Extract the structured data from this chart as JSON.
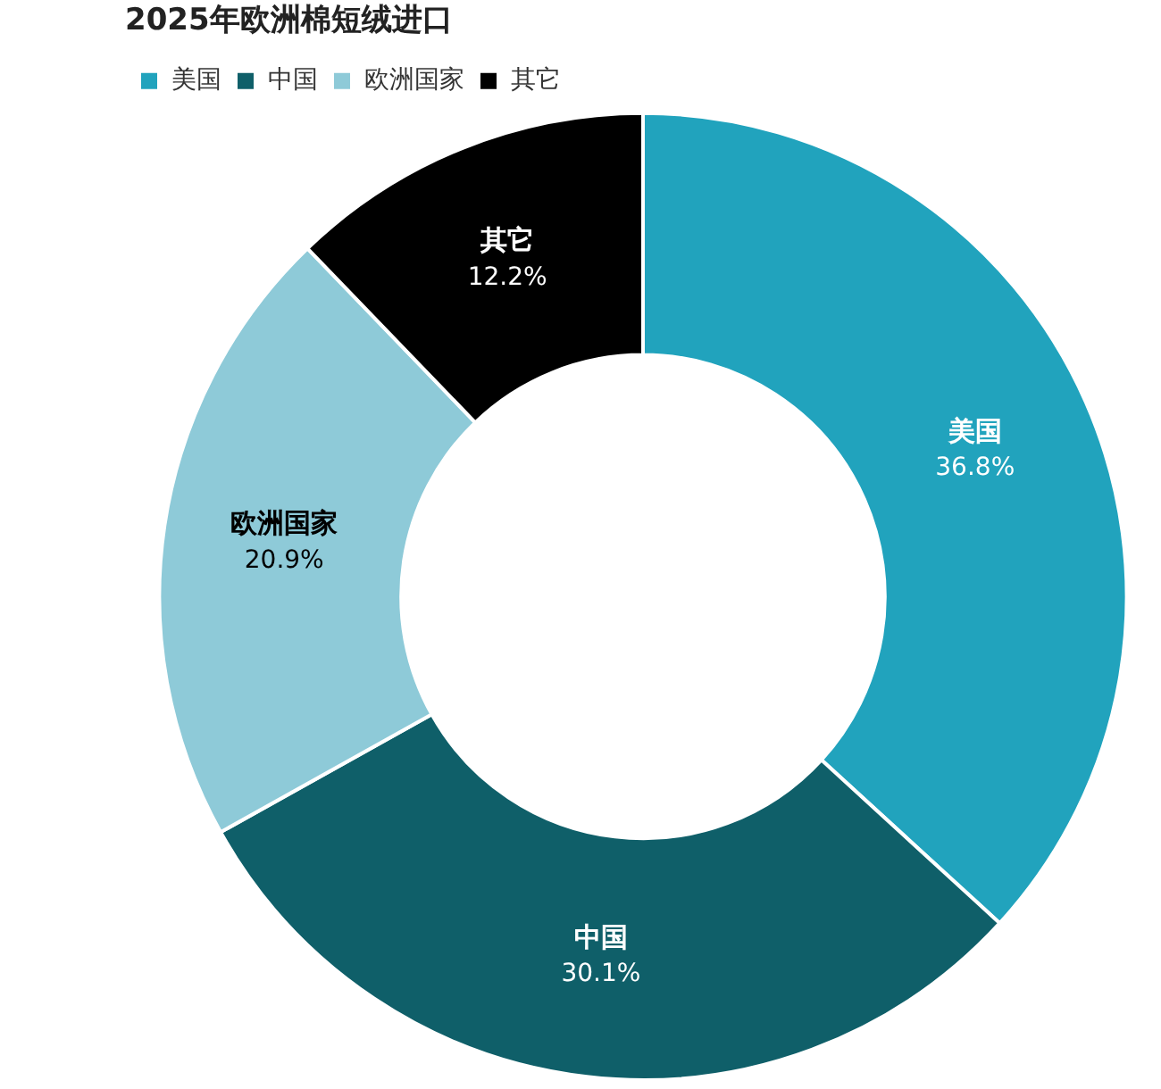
{
  "chart_data": {
    "type": "donut",
    "title": "2025年欧洲棉短绒进口",
    "categories": [
      "美国",
      "中国",
      "欧洲国家",
      "其它"
    ],
    "values": [
      36.8,
      30.1,
      20.9,
      12.2
    ],
    "value_labels": [
      "36.8%",
      "30.1%",
      "20.9%",
      "12.2%"
    ],
    "colors": [
      "#21a3bd",
      "#0f5f69",
      "#8ecad8",
      "#000000"
    ],
    "legend": "top left"
  }
}
